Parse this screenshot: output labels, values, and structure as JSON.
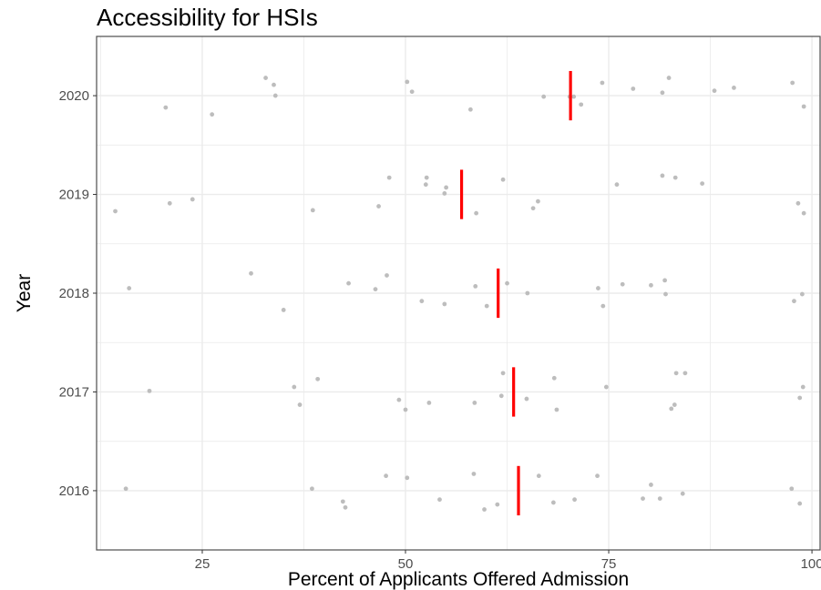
{
  "chart_data": {
    "type": "scatter",
    "title": "Accessibility for HSIs",
    "xlabel": "Percent of Applicants Offered Admission",
    "ylabel": "Year",
    "xlim": [
      12,
      101
    ],
    "x_ticks": [
      25,
      50,
      75,
      100
    ],
    "y_categories": [
      "2016",
      "2017",
      "2018",
      "2019",
      "2020"
    ],
    "grid": true,
    "point_color": "#bdbdbd",
    "mean_color": "#ff0000",
    "panel_border_color": "#4d4d4d",
    "grid_color": "#ebebeb",
    "means": [
      {
        "year": "2016",
        "value": 63.9
      },
      {
        "year": "2017",
        "value": 63.3
      },
      {
        "year": "2018",
        "value": 61.4
      },
      {
        "year": "2019",
        "value": 56.9
      },
      {
        "year": "2020",
        "value": 70.3
      }
    ],
    "series": [
      {
        "year": "2020",
        "points": [
          [
            20.5,
            -0.12
          ],
          [
            26.2,
            -0.19
          ],
          [
            32.8,
            0.18
          ],
          [
            33.8,
            0.11
          ],
          [
            34.0,
            0.0
          ],
          [
            50.2,
            0.14
          ],
          [
            50.8,
            0.04
          ],
          [
            58.0,
            -0.14
          ],
          [
            67.0,
            -0.01
          ],
          [
            70.2,
            -0.01
          ],
          [
            70.7,
            -0.01
          ],
          [
            71.6,
            -0.09
          ],
          [
            74.2,
            0.13
          ],
          [
            78.0,
            0.07
          ],
          [
            81.6,
            0.03
          ],
          [
            82.4,
            0.18
          ],
          [
            88.0,
            0.05
          ],
          [
            90.4,
            0.08
          ],
          [
            97.6,
            0.13
          ],
          [
            99.0,
            -0.11
          ]
        ]
      },
      {
        "year": "2019",
        "points": [
          [
            14.3,
            -0.17
          ],
          [
            21.0,
            -0.09
          ],
          [
            23.8,
            -0.05
          ],
          [
            38.6,
            -0.16
          ],
          [
            46.7,
            -0.12
          ],
          [
            48.0,
            0.17
          ],
          [
            52.5,
            0.1
          ],
          [
            52.6,
            0.17
          ],
          [
            54.8,
            0.01
          ],
          [
            55.0,
            0.07
          ],
          [
            58.7,
            -0.19
          ],
          [
            62.0,
            0.15
          ],
          [
            65.7,
            -0.14
          ],
          [
            66.3,
            -0.07
          ],
          [
            76.0,
            0.1
          ],
          [
            81.6,
            0.19
          ],
          [
            83.2,
            0.17
          ],
          [
            86.5,
            0.11
          ],
          [
            98.3,
            -0.09
          ],
          [
            99.0,
            -0.19
          ]
        ]
      },
      {
        "year": "2018",
        "points": [
          [
            16.0,
            0.05
          ],
          [
            31.0,
            0.2
          ],
          [
            35.0,
            -0.17
          ],
          [
            43.0,
            0.1
          ],
          [
            46.3,
            0.04
          ],
          [
            47.7,
            0.18
          ],
          [
            52.0,
            -0.08
          ],
          [
            54.8,
            -0.11
          ],
          [
            58.6,
            0.07
          ],
          [
            60.0,
            -0.13
          ],
          [
            62.5,
            0.1
          ],
          [
            65.0,
            0.0
          ],
          [
            73.7,
            0.05
          ],
          [
            74.3,
            -0.13
          ],
          [
            76.7,
            0.09
          ],
          [
            80.2,
            0.08
          ],
          [
            81.9,
            0.13
          ],
          [
            82.0,
            -0.01
          ],
          [
            97.8,
            -0.08
          ],
          [
            98.8,
            -0.01
          ]
        ]
      },
      {
        "year": "2017",
        "points": [
          [
            18.5,
            0.01
          ],
          [
            36.3,
            0.05
          ],
          [
            37.0,
            -0.13
          ],
          [
            39.2,
            0.13
          ],
          [
            49.2,
            -0.08
          ],
          [
            50.0,
            -0.18
          ],
          [
            52.9,
            -0.11
          ],
          [
            58.5,
            -0.11
          ],
          [
            61.8,
            -0.04
          ],
          [
            62.0,
            0.19
          ],
          [
            64.9,
            -0.07
          ],
          [
            68.3,
            0.14
          ],
          [
            68.6,
            -0.18
          ],
          [
            74.7,
            0.05
          ],
          [
            82.7,
            -0.17
          ],
          [
            83.1,
            -0.13
          ],
          [
            83.3,
            0.19
          ],
          [
            84.4,
            0.19
          ],
          [
            98.5,
            -0.06
          ],
          [
            98.9,
            0.05
          ]
        ]
      },
      {
        "year": "2016",
        "points": [
          [
            15.6,
            0.02
          ],
          [
            38.5,
            0.02
          ],
          [
            42.3,
            -0.11
          ],
          [
            42.6,
            -0.17
          ],
          [
            47.6,
            0.15
          ],
          [
            50.2,
            0.13
          ],
          [
            54.2,
            -0.09
          ],
          [
            58.4,
            0.17
          ],
          [
            59.7,
            -0.19
          ],
          [
            61.3,
            -0.14
          ],
          [
            66.4,
            0.15
          ],
          [
            68.2,
            -0.12
          ],
          [
            70.8,
            -0.09
          ],
          [
            73.6,
            0.15
          ],
          [
            79.2,
            -0.08
          ],
          [
            80.2,
            0.06
          ],
          [
            81.3,
            -0.08
          ],
          [
            84.1,
            -0.03
          ],
          [
            97.5,
            0.02
          ],
          [
            98.5,
            -0.13
          ]
        ]
      }
    ]
  }
}
